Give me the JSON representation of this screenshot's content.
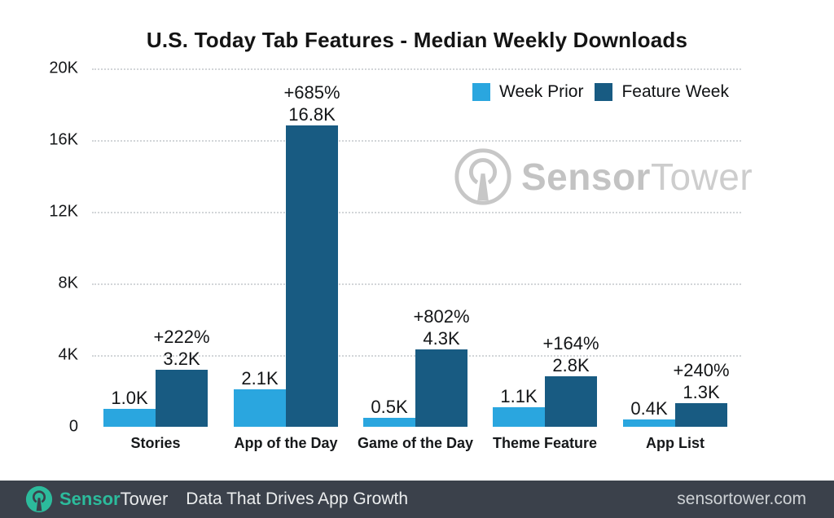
{
  "title": "U.S. Today Tab Features - Median Weekly Downloads",
  "legend": {
    "items": [
      {
        "label": "Week Prior",
        "color": "#2aa6df"
      },
      {
        "label": "Feature Week",
        "color": "#185b82"
      }
    ]
  },
  "watermark": {
    "bold": "Sensor",
    "light": "Tower",
    "logo": "sensortower-logo-icon"
  },
  "footer": {
    "brand_bold": "Sensor",
    "brand_light": "Tower",
    "tagline": "Data That Drives App Growth",
    "site": "sensortower.com"
  },
  "colors": {
    "week_prior": "#2aa6df",
    "feature_week": "#185b82",
    "gridline": "#d2d5d8",
    "watermark_gray": "#c7c7c7",
    "footer_bg": "#3b414b",
    "brand_teal": "#2cbb9c"
  },
  "chart_data": {
    "type": "bar",
    "title": "U.S. Today Tab Features - Median Weekly Downloads",
    "categories": [
      "Stories",
      "App of the Day",
      "Game of the Day",
      "Theme Feature",
      "App List"
    ],
    "series": [
      {
        "name": "Week Prior",
        "color": "#2aa6df",
        "values": [
          1000,
          2100,
          500,
          1100,
          400
        ],
        "labels": [
          "1.0K",
          "2.1K",
          "0.5K",
          "1.1K",
          "0.4K"
        ]
      },
      {
        "name": "Feature Week",
        "color": "#185b82",
        "values": [
          3200,
          16800,
          4300,
          2800,
          1300
        ],
        "labels": [
          "3.2K",
          "16.8K",
          "4.3K",
          "2.8K",
          "1.3K"
        ]
      }
    ],
    "pct_change_labels": [
      "+222%",
      "+685%",
      "+802%",
      "+164%",
      "+240%"
    ],
    "xlabel": "",
    "ylabel": "",
    "y_ticks": [
      {
        "label": "20K",
        "value": 20000
      },
      {
        "label": "16K",
        "value": 16000
      },
      {
        "label": "12K",
        "value": 12000
      },
      {
        "label": "8K",
        "value": 8000
      },
      {
        "label": "4K",
        "value": 4000
      },
      {
        "label": "0",
        "value": 0
      }
    ],
    "ylim": [
      0,
      20000
    ],
    "grid": "horizontal-dotted",
    "legend_position": "top-right"
  }
}
